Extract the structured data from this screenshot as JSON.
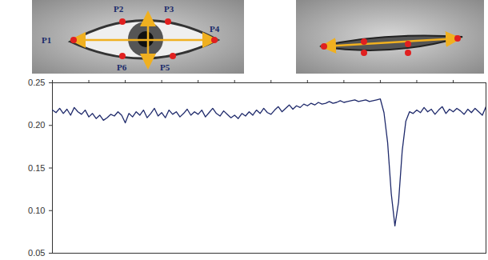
{
  "chart_data": {
    "type": "line",
    "annotations": [
      "P1",
      "P2",
      "P3",
      "P4",
      "P5",
      "P6"
    ],
    "x": [
      0,
      1,
      2,
      3,
      4,
      5,
      6,
      7,
      8,
      9,
      10,
      11,
      12,
      13,
      14,
      15,
      16,
      17,
      18,
      19,
      20,
      21,
      22,
      23,
      24,
      25,
      26,
      27,
      28,
      29,
      30,
      31,
      32,
      33,
      34,
      35,
      36,
      37,
      38,
      39,
      40,
      41,
      42,
      43,
      44,
      45,
      46,
      47,
      48,
      49,
      50,
      51,
      52,
      53,
      54,
      55,
      56,
      57,
      58,
      59,
      60,
      61,
      62,
      63,
      64,
      65,
      66,
      67,
      68,
      69,
      70,
      71,
      72,
      73,
      74,
      75,
      76,
      77,
      78,
      79,
      80,
      81,
      82,
      83,
      84,
      85,
      86,
      87,
      88,
      89,
      90,
      91,
      92,
      93,
      94,
      95,
      96,
      97,
      98,
      99,
      100,
      101,
      102,
      103,
      104,
      105,
      106,
      107,
      108,
      109,
      110,
      111,
      112,
      113,
      114,
      115,
      116,
      117,
      118,
      119
    ],
    "values": [
      0.218,
      0.215,
      0.22,
      0.214,
      0.219,
      0.212,
      0.221,
      0.216,
      0.213,
      0.218,
      0.21,
      0.214,
      0.208,
      0.212,
      0.206,
      0.209,
      0.213,
      0.211,
      0.216,
      0.212,
      0.203,
      0.214,
      0.21,
      0.216,
      0.212,
      0.218,
      0.209,
      0.214,
      0.22,
      0.211,
      0.215,
      0.209,
      0.218,
      0.213,
      0.216,
      0.21,
      0.214,
      0.219,
      0.212,
      0.216,
      0.213,
      0.218,
      0.21,
      0.215,
      0.22,
      0.214,
      0.211,
      0.217,
      0.213,
      0.209,
      0.212,
      0.208,
      0.214,
      0.211,
      0.216,
      0.212,
      0.218,
      0.214,
      0.22,
      0.215,
      0.213,
      0.218,
      0.222,
      0.216,
      0.22,
      0.224,
      0.219,
      0.223,
      0.221,
      0.225,
      0.223,
      0.226,
      0.224,
      0.227,
      0.225,
      0.226,
      0.228,
      0.226,
      0.227,
      0.229,
      0.227,
      0.228,
      0.229,
      0.23,
      0.228,
      0.229,
      0.23,
      0.228,
      0.229,
      0.23,
      0.231,
      0.215,
      0.18,
      0.12,
      0.082,
      0.11,
      0.17,
      0.205,
      0.216,
      0.214,
      0.218,
      0.215,
      0.221,
      0.216,
      0.219,
      0.213,
      0.218,
      0.222,
      0.214,
      0.219,
      0.216,
      0.22,
      0.217,
      0.213,
      0.219,
      0.215,
      0.22,
      0.216,
      0.212,
      0.222
    ],
    "color": "#1f2a6b",
    "xlim": [
      0,
      119
    ],
    "xticks": [
      0,
      10,
      20,
      30,
      40,
      50,
      60,
      70,
      80,
      90,
      100,
      110
    ],
    "ylim": [
      0.05,
      0.25
    ],
    "yticks": [
      0.05,
      {
        "value": 0.1,
        "label": "0.10"
      },
      0.15,
      {
        "value": 0.2,
        "label": "0.20"
      },
      0.25
    ],
    "tick_labels": "y",
    "grid": false
  }
}
